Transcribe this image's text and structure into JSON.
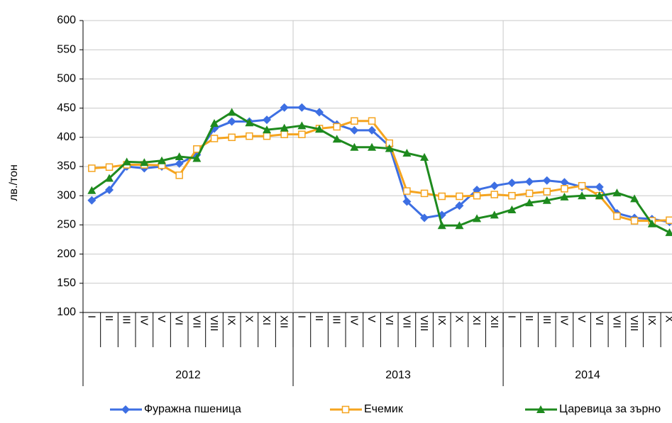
{
  "chart_data": {
    "type": "line",
    "y_label": "лв./тон",
    "categories": [
      "I",
      "II",
      "III",
      "IV",
      "V",
      "VI",
      "VII",
      "VIII",
      "IX",
      "X",
      "XI",
      "XII",
      "I",
      "II",
      "III",
      "IV",
      "V",
      "VI",
      "VII",
      "VIII",
      "IX",
      "X",
      "XI",
      "XII",
      "I",
      "II",
      "III",
      "IV",
      "V",
      "VI",
      "VII",
      "VIII",
      "IX",
      "X"
    ],
    "groups": [
      "2012",
      "2013",
      "2014"
    ],
    "series": [
      {
        "name": "Фуражна пшеница",
        "color": "#3d6fe3",
        "marker": "diamond",
        "values": [
          292,
          310,
          350,
          347,
          350,
          355,
          370,
          415,
          427,
          427,
          430,
          451,
          451,
          443,
          422,
          412,
          412,
          385,
          290,
          262,
          267,
          283,
          310,
          317,
          322,
          324,
          326,
          323,
          315,
          315,
          270,
          262,
          260,
          255
        ]
      },
      {
        "name": "Ечемик",
        "color": "#f5a41f",
        "marker": "square",
        "values": [
          347,
          349,
          353,
          353,
          352,
          335,
          380,
          398,
          400,
          402,
          402,
          405,
          405,
          415,
          418,
          428,
          428,
          390,
          308,
          304,
          299,
          299,
          300,
          302,
          300,
          304,
          307,
          312,
          317,
          300,
          265,
          257,
          257,
          258
        ]
      },
      {
        "name": "Царевица за зърно",
        "color": "#1e8a1e",
        "marker": "triangle",
        "values": [
          309,
          330,
          358,
          357,
          360,
          367,
          364,
          424,
          443,
          425,
          413,
          416,
          420,
          414,
          397,
          383,
          383,
          381,
          373,
          366,
          249,
          249,
          261,
          267,
          276,
          288,
          292,
          298,
          300,
          300,
          305,
          295,
          252,
          237
        ]
      }
    ],
    "ylim": [
      100,
      600
    ],
    "yticks": [
      100,
      150,
      200,
      250,
      300,
      350,
      400,
      450,
      500,
      550,
      600
    ],
    "grid": true
  }
}
